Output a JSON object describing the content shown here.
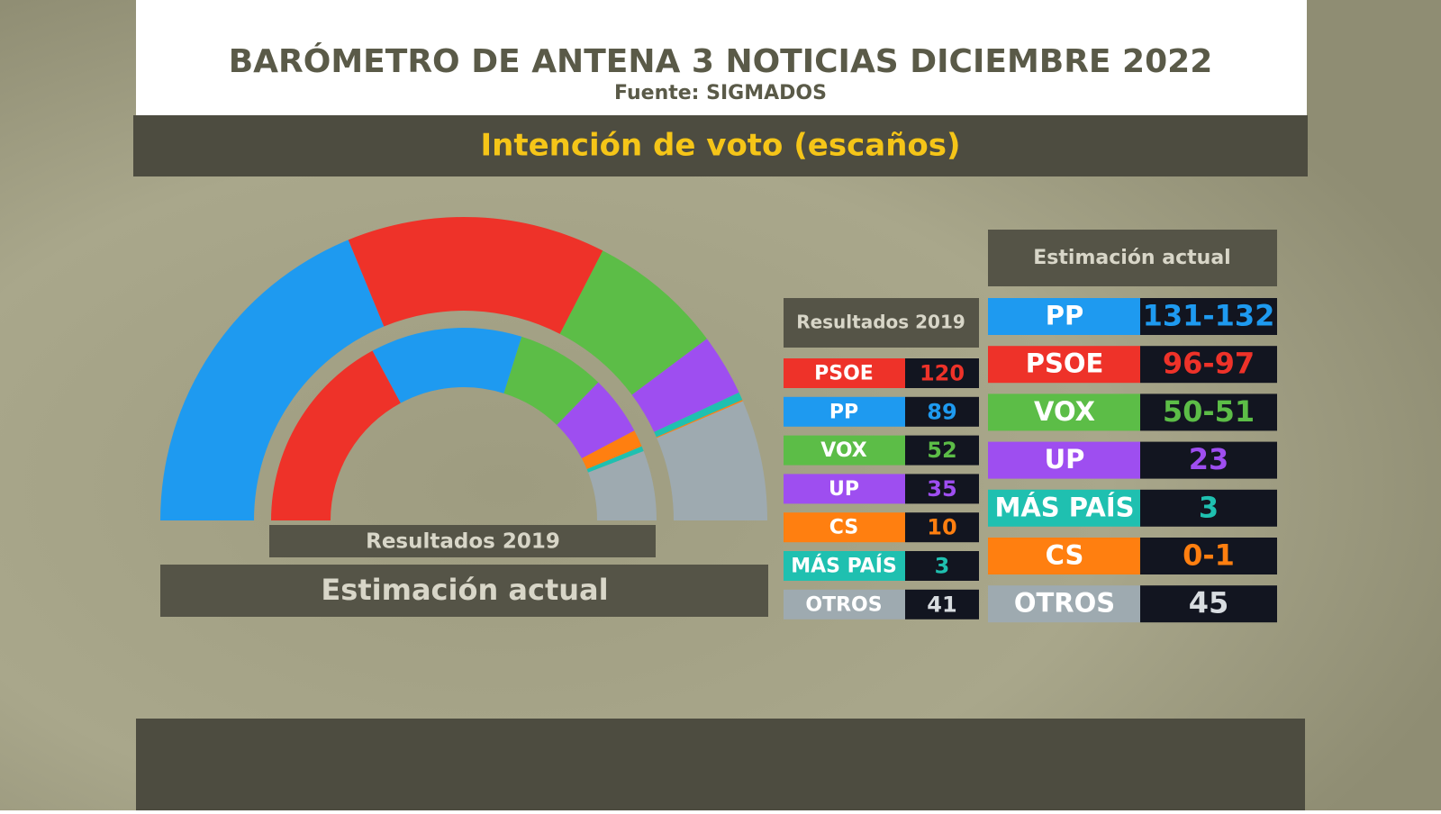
{
  "header": {
    "title": "BARÓMETRO DE ANTENA 3 NOTICIAS DICIEMBRE 2022",
    "source": "Fuente: SIGMADOS"
  },
  "section_title": "Intención de voto (escaños)",
  "results_2019": {
    "title": "Resultados 2019",
    "rows": [
      {
        "party": "PSOE",
        "color": "#ee3229",
        "seats": 120
      },
      {
        "party": "PP",
        "color": "#1e9af0",
        "seats": 89
      },
      {
        "party": "VOX",
        "color": "#5cbd47",
        "seats": 52
      },
      {
        "party": "UP",
        "color": "#9e4ef0",
        "seats": 35
      },
      {
        "party": "CS",
        "color": "#ff7f10",
        "seats": 10
      },
      {
        "party": "MÁS PAÍS",
        "color": "#1fc0b0",
        "seats": 3
      },
      {
        "party": "OTROS",
        "color": "#9eaab0",
        "seats": 41
      }
    ]
  },
  "estimate": {
    "title": "Estimación actual",
    "rows": [
      {
        "party": "PP",
        "color": "#1e9af0",
        "label": "131-132",
        "low": 131,
        "high": 132
      },
      {
        "party": "PSOE",
        "color": "#ee3229",
        "label": "96-97",
        "low": 96,
        "high": 97
      },
      {
        "party": "VOX",
        "color": "#5cbd47",
        "label": "50-51",
        "low": 50,
        "high": 51
      },
      {
        "party": "UP",
        "color": "#9e4ef0",
        "label": "23",
        "low": 23,
        "high": 23
      },
      {
        "party": "MÁS PAÍS",
        "color": "#1fc0b0",
        "label": "3",
        "low": 3,
        "high": 3
      },
      {
        "party": "CS",
        "color": "#ff7f10",
        "label": "0-1",
        "low": 0,
        "high": 1
      },
      {
        "party": "OTROS",
        "color": "#9eaab0",
        "label": "45",
        "low": 45,
        "high": 45
      }
    ]
  }
}
